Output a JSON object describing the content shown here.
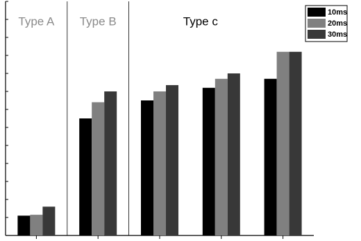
{
  "chart_data": {
    "type": "bar",
    "categories": [
      null,
      null,
      null,
      null,
      null
    ],
    "series": [
      {
        "name": "10ms",
        "color": "#000000",
        "values": [
          1.1,
          6.5,
          7.5,
          8.2,
          8.7
        ]
      },
      {
        "name": "20ms",
        "color": "#808080",
        "values": [
          1.15,
          7.4,
          8.0,
          8.7,
          10.2
        ]
      },
      {
        "name": "30ms",
        "color": "#383838",
        "values": [
          1.6,
          8.0,
          8.35,
          9.0,
          10.2
        ]
      }
    ],
    "ylim": [
      0,
      13
    ],
    "yticks": [
      0,
      1,
      2,
      3,
      4,
      5,
      6,
      7,
      8,
      9,
      10,
      11,
      12,
      13
    ],
    "regions": [
      {
        "label": "Type A",
        "from": 0,
        "to": 0,
        "color": "#8a8a8a"
      },
      {
        "label": "Type B",
        "from": 1,
        "to": 1,
        "color": "#8a8a8a"
      },
      {
        "label": "Type c",
        "from": 2,
        "to": 4,
        "color": "#000000"
      }
    ],
    "legend": "upper right",
    "grid": false
  }
}
